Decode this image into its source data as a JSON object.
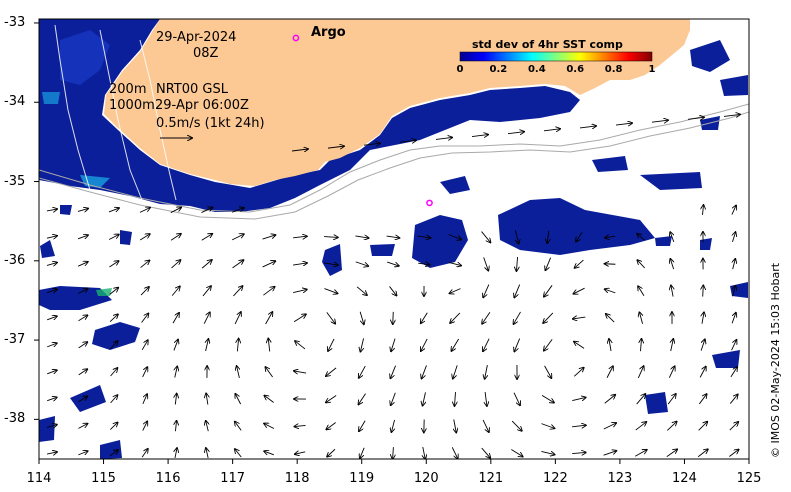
{
  "map": {
    "date_line": "29-Apr-2024",
    "time_line": "08Z",
    "contour_labels": [
      "200m",
      "1000m"
    ],
    "product_line1": "NRT00 GSL",
    "product_line2": "29-Apr 06:00Z",
    "scale_label": "0.5m/s (1kt 24h)",
    "argo_label": "Argo",
    "colorbar": {
      "title": "std dev of 4hr SST comp",
      "ticks": [
        "0",
        "0.2",
        "0.4",
        "0.6",
        "0.8",
        "1"
      ],
      "range": [
        0,
        1
      ],
      "colormap": "jet"
    },
    "x_ticks": [
      "114",
      "115",
      "116",
      "117",
      "118",
      "119",
      "120",
      "121",
      "122",
      "123",
      "124",
      "125"
    ],
    "y_ticks": [
      "-33",
      "-34",
      "-35",
      "-36",
      "-37",
      "-38"
    ],
    "copyright": "© IMOS 02-May-2024 15:03 Hobart",
    "colors": {
      "land": "#fcc894",
      "ocean": "#ffffff",
      "low_std": "#0b1f9a",
      "argo_marker": "#ff00ff",
      "contour": "#a9a9a9"
    },
    "argo_floats": [
      {
        "lon": 117.98,
        "lat": -33.19
      },
      {
        "lon": 120.05,
        "lat": -35.27
      }
    ]
  }
}
